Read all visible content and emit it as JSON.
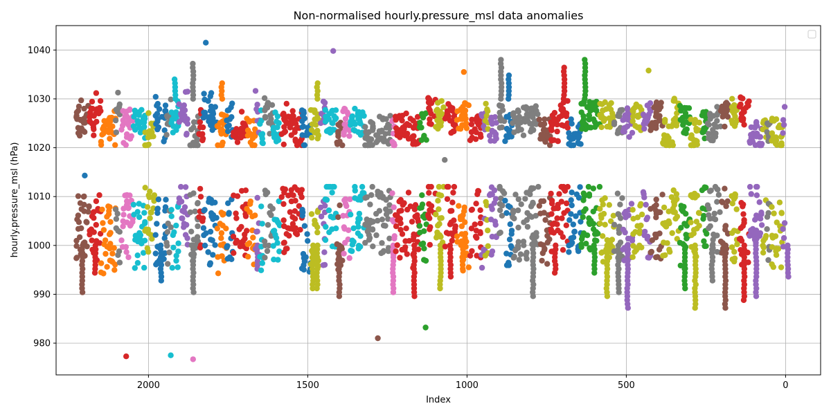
{
  "chart_data": {
    "type": "scatter",
    "title": "Non-normalised hourly.pressure_msl data anomalies",
    "xlabel": "Index",
    "ylabel": "hourly.pressure_msl (hPa)",
    "xlim": [
      2290,
      -110
    ],
    "ylim": [
      973.5,
      1045
    ],
    "x_inverted": true,
    "x_ticks": [
      2000,
      1500,
      1000,
      500,
      0
    ],
    "y_ticks": [
      980,
      990,
      1000,
      1010,
      1020,
      1030,
      1040
    ],
    "grid": true,
    "legend": "upper-right, empty",
    "colors": [
      "#1f77b4",
      "#ff7f0e",
      "#2ca02c",
      "#d62728",
      "#9467bd",
      "#8c564b",
      "#e377c2",
      "#7f7f7f",
      "#bcbd22",
      "#17becf"
    ],
    "bands": [
      {
        "name": "upper cluster",
        "x_range": [
          2230,
          0
        ],
        "y_range": [
          1020.5,
          1032
        ],
        "outliers_y_max": 1041.5
      },
      {
        "name": "lower cluster",
        "x_range": [
          2230,
          0
        ],
        "y_range": [
          994,
          1012
        ],
        "outliers_y_min": 976.7
      }
    ],
    "notable_points": [
      {
        "x": 1820,
        "y": 1041.5
      },
      {
        "x": 2070,
        "y": 977.3
      },
      {
        "x": 1860,
        "y": 976.7
      },
      {
        "x": 1930,
        "y": 977.5
      },
      {
        "x": 1130,
        "y": 983.2
      },
      {
        "x": 1280,
        "y": 981.0
      },
      {
        "x": 430,
        "y": 1035.8
      },
      {
        "x": 1010,
        "y": 1035.5
      },
      {
        "x": 1420,
        "y": 1039.8
      },
      {
        "x": 1070,
        "y": 1017.5
      },
      {
        "x": 2200,
        "y": 1014.3
      }
    ]
  }
}
